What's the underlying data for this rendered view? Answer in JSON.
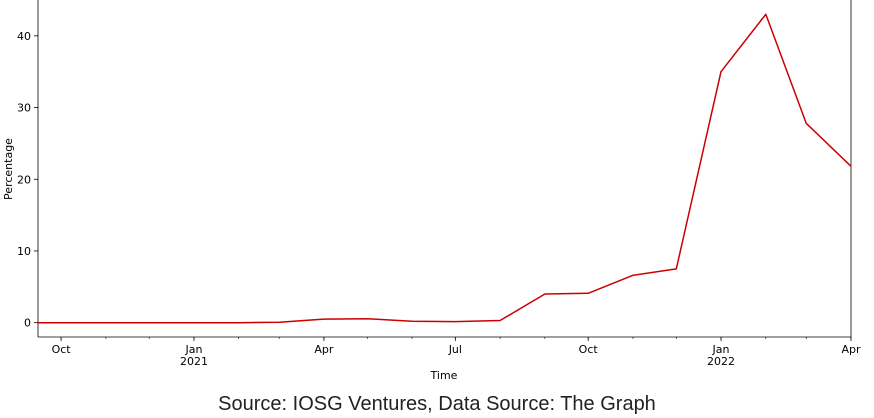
{
  "chart_data": {
    "type": "line",
    "xlabel": "Time",
    "ylabel": "Percentage",
    "xlim": [
      "2020-09-15",
      "2022-04-01"
    ],
    "ylim": [
      -2,
      45
    ],
    "y_ticks": [
      0,
      10,
      20,
      30,
      40
    ],
    "x_ticks": [
      {
        "date": "2020-10-01",
        "label": "Oct",
        "sub": ""
      },
      {
        "date": "2021-01-01",
        "label": "Jan",
        "sub": "2021"
      },
      {
        "date": "2021-04-01",
        "label": "Apr",
        "sub": ""
      },
      {
        "date": "2021-07-01",
        "label": "Jul",
        "sub": ""
      },
      {
        "date": "2021-10-01",
        "label": "Oct",
        "sub": ""
      },
      {
        "date": "2022-01-01",
        "label": "Jan",
        "sub": "2022"
      },
      {
        "date": "2022-04-01",
        "label": "Apr",
        "sub": ""
      }
    ],
    "grid": false,
    "series": [
      {
        "color": "#cc0000",
        "points": [
          {
            "x": "2020-09-15",
            "y": 0.0
          },
          {
            "x": "2020-10-01",
            "y": 0.0
          },
          {
            "x": "2020-11-01",
            "y": 0.0
          },
          {
            "x": "2020-12-01",
            "y": 0.0
          },
          {
            "x": "2021-01-01",
            "y": 0.0
          },
          {
            "x": "2021-02-01",
            "y": 0.0
          },
          {
            "x": "2021-03-01",
            "y": 0.05
          },
          {
            "x": "2021-04-01",
            "y": 0.5
          },
          {
            "x": "2021-05-01",
            "y": 0.55
          },
          {
            "x": "2021-06-01",
            "y": 0.2
          },
          {
            "x": "2021-07-01",
            "y": 0.15
          },
          {
            "x": "2021-08-01",
            "y": 0.3
          },
          {
            "x": "2021-09-01",
            "y": 4.0
          },
          {
            "x": "2021-10-01",
            "y": 4.1
          },
          {
            "x": "2021-11-01",
            "y": 6.6
          },
          {
            "x": "2021-12-01",
            "y": 7.5
          },
          {
            "x": "2022-01-01",
            "y": 35.0
          },
          {
            "x": "2022-02-01",
            "y": 43.0
          },
          {
            "x": "2022-03-01",
            "y": 27.8
          },
          {
            "x": "2022-04-01",
            "y": 21.8
          }
        ]
      }
    ]
  },
  "source_text": "Source: IOSG Ventures, Data Source: The Graph"
}
